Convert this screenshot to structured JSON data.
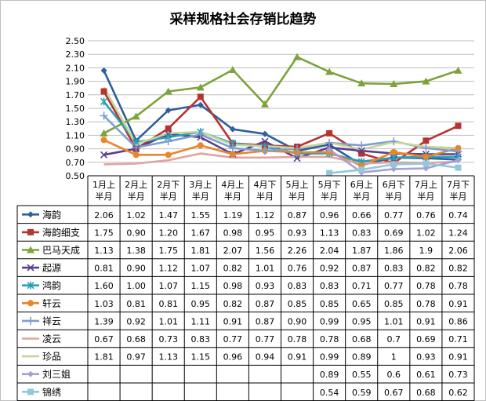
{
  "chart_data": {
    "type": "line",
    "title": "采样规格社会存销比趋势",
    "xlabel": "",
    "ylabel": "",
    "categories": [
      "1月上半月",
      "2月上半月",
      "2月下半月",
      "3月上半月",
      "4月上半月",
      "4月下半月",
      "5月上半月",
      "5月下半月",
      "6月上半月",
      "6月下半月",
      "7月上半月",
      "7月下半月"
    ],
    "category_lines": [
      [
        "1月上",
        "半月"
      ],
      [
        "2月上",
        "半月"
      ],
      [
        "2月下",
        "半月"
      ],
      [
        "3月上",
        "半月"
      ],
      [
        "4月上",
        "半月"
      ],
      [
        "4月下",
        "半月"
      ],
      [
        "5月上",
        "半月"
      ],
      [
        "5月下",
        "半月"
      ],
      [
        "6月上",
        "半月"
      ],
      [
        "6月下",
        "半月"
      ],
      [
        "7月上",
        "半月"
      ],
      [
        "7月下",
        "半月"
      ]
    ],
    "ylim": [
      0.5,
      2.5
    ],
    "ytick_step": 0.2,
    "ytick_labels": [
      "0.50",
      "0.70",
      "0.90",
      "1.10",
      "1.30",
      "1.50",
      "1.70",
      "1.90",
      "2.10",
      "2.30",
      "2.50"
    ],
    "grid": true,
    "legend": "bottom-table",
    "series": [
      {
        "name": "海韵",
        "color": "#2e5f9e",
        "marker": "diamond",
        "values": [
          2.06,
          1.02,
          1.47,
          1.55,
          1.19,
          1.12,
          0.87,
          0.96,
          0.66,
          0.77,
          0.76,
          0.74
        ],
        "labels": [
          "2.06",
          "1.02",
          "1.47",
          "1.55",
          "1.19",
          "1.12",
          "0.87",
          "0.96",
          "0.66",
          "0.77",
          "0.76",
          "0.74"
        ]
      },
      {
        "name": "海韵细支",
        "color": "#b83232",
        "marker": "square",
        "values": [
          1.75,
          0.9,
          1.2,
          1.67,
          0.98,
          0.95,
          0.93,
          1.13,
          0.83,
          0.69,
          1.02,
          1.24
        ],
        "labels": [
          "1.75",
          "0.90",
          "1.20",
          "1.67",
          "0.98",
          "0.95",
          "0.93",
          "1.13",
          "0.83",
          "0.69",
          "1.02",
          "1.24"
        ]
      },
      {
        "name": "巴马天成",
        "color": "#7ea33a",
        "marker": "triangle",
        "values": [
          1.13,
          1.38,
          1.75,
          1.81,
          2.07,
          1.56,
          2.26,
          2.04,
          1.87,
          1.86,
          1.9,
          2.06
        ],
        "labels": [
          "1.13",
          "1.38",
          "1.75",
          "1.81",
          "2.07",
          "1.56",
          "2.26",
          "2.04",
          "1.87",
          "1.86",
          "1.9",
          "2.06"
        ]
      },
      {
        "name": "起源",
        "color": "#5a3f8a",
        "marker": "x",
        "values": [
          0.81,
          0.9,
          1.12,
          1.07,
          0.82,
          1.01,
          0.76,
          0.92,
          0.87,
          0.83,
          0.82,
          0.82
        ],
        "labels": [
          "0.81",
          "0.90",
          "1.12",
          "1.07",
          "0.82",
          "1.01",
          "0.76",
          "0.92",
          "0.87",
          "0.83",
          "0.82",
          "0.82"
        ]
      },
      {
        "name": "鸿韵",
        "color": "#2aa0b8",
        "marker": "star",
        "values": [
          1.6,
          1.0,
          1.07,
          1.15,
          0.98,
          0.93,
          0.83,
          0.83,
          0.71,
          0.77,
          0.78,
          0.78
        ],
        "labels": [
          "1.60",
          "1.00",
          "1.07",
          "1.15",
          "0.98",
          "0.93",
          "0.83",
          "0.83",
          "0.71",
          "0.77",
          "0.78",
          "0.78"
        ]
      },
      {
        "name": "轩云",
        "color": "#e8862a",
        "marker": "circle",
        "values": [
          1.03,
          0.81,
          0.81,
          0.95,
          0.82,
          0.87,
          0.85,
          0.85,
          0.65,
          0.85,
          0.78,
          0.91
        ],
        "labels": [
          "1.03",
          "0.81",
          "0.81",
          "0.95",
          "0.82",
          "0.87",
          "0.85",
          "0.85",
          "0.65",
          "0.85",
          "0.78",
          "0.91"
        ]
      },
      {
        "name": "祥云",
        "color": "#7f9ed0",
        "marker": "plus",
        "values": [
          1.39,
          0.92,
          1.01,
          1.11,
          0.91,
          0.87,
          0.9,
          0.99,
          0.95,
          1.01,
          0.91,
          0.86
        ],
        "labels": [
          "1.39",
          "0.92",
          "1.01",
          "1.11",
          "0.91",
          "0.87",
          "0.90",
          "0.99",
          "0.95",
          "1.01",
          "0.91",
          "0.86"
        ]
      },
      {
        "name": "凌云",
        "color": "#e0a3a3",
        "marker": "none",
        "values": [
          0.67,
          0.68,
          0.73,
          0.83,
          0.77,
          0.77,
          0.78,
          0.78,
          0.68,
          0.7,
          0.69,
          0.71
        ],
        "labels": [
          "0.67",
          "0.68",
          "0.73",
          "0.83",
          "0.77",
          "0.77",
          "0.78",
          "0.78",
          "0.68",
          "0.7",
          "0.69",
          "0.71"
        ]
      },
      {
        "name": "珍品",
        "color": "#c3d69b",
        "marker": "none",
        "values": [
          1.81,
          0.97,
          1.13,
          1.15,
          0.96,
          0.94,
          0.91,
          0.99,
          0.89,
          1,
          0.93,
          0.91
        ],
        "labels": [
          "1.81",
          "0.97",
          "1.13",
          "1.15",
          "0.96",
          "0.94",
          "0.91",
          "0.99",
          "0.89",
          "1",
          "0.93",
          "0.91"
        ]
      },
      {
        "name": "刘三姐",
        "color": "#a9a0cf",
        "marker": "diamond",
        "values": [
          null,
          null,
          null,
          null,
          null,
          null,
          null,
          0.89,
          0.55,
          0.6,
          0.61,
          0.73
        ],
        "labels": [
          "",
          "",
          "",
          "",
          "",
          "",
          "",
          "0.89",
          "0.55",
          "0.6",
          "0.61",
          "0.73"
        ]
      },
      {
        "name": "锦绣",
        "color": "#93c8dc",
        "marker": "square",
        "values": [
          null,
          null,
          null,
          null,
          null,
          null,
          null,
          0.54,
          0.59,
          0.67,
          0.68,
          0.62
        ],
        "labels": [
          "",
          "",
          "",
          "",
          "",
          "",
          "",
          "0.54",
          "0.59",
          "0.67",
          "0.68",
          "0.62"
        ]
      }
    ]
  }
}
